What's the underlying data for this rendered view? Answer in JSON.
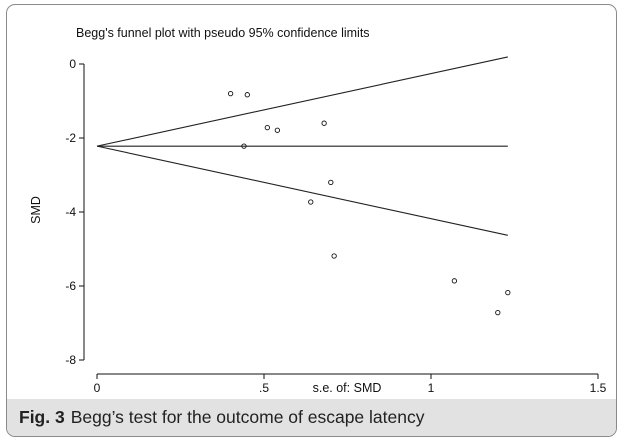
{
  "chart_data": {
    "type": "scatter",
    "title": "Begg's funnel plot with pseudo 95% confidence limits",
    "xlabel": "s.e. of: SMD",
    "ylabel": "SMD",
    "xlim": [
      0,
      1.5
    ],
    "ylim": [
      -8,
      0
    ],
    "xticks": [
      {
        "value": 0,
        "label": "0"
      },
      {
        "value": 0.5,
        "label": ".5"
      },
      {
        "value": 1,
        "label": "1"
      },
      {
        "value": 1.5,
        "label": "1.5"
      }
    ],
    "yticks": [
      {
        "value": 0,
        "label": "0"
      },
      {
        "value": -2,
        "label": "-2"
      },
      {
        "value": -4,
        "label": "-4"
      },
      {
        "value": -6,
        "label": "-6"
      },
      {
        "value": -8,
        "label": "-8"
      }
    ],
    "pooled_estimate": -2.22,
    "funnel_max_se": 1.23,
    "points": [
      {
        "x": 0.4,
        "y": -0.8
      },
      {
        "x": 0.45,
        "y": -0.83
      },
      {
        "x": 0.44,
        "y": -2.22
      },
      {
        "x": 0.51,
        "y": -1.72
      },
      {
        "x": 0.54,
        "y": -1.79
      },
      {
        "x": 0.68,
        "y": -1.6
      },
      {
        "x": 0.7,
        "y": -3.2
      },
      {
        "x": 0.64,
        "y": -3.73
      },
      {
        "x": 0.71,
        "y": -5.19
      },
      {
        "x": 1.07,
        "y": -5.86
      },
      {
        "x": 1.2,
        "y": -6.72
      },
      {
        "x": 1.23,
        "y": -6.18
      }
    ]
  },
  "caption": {
    "label": "Fig. 3",
    "text": "Begg’s test for the outcome of escape latency"
  }
}
